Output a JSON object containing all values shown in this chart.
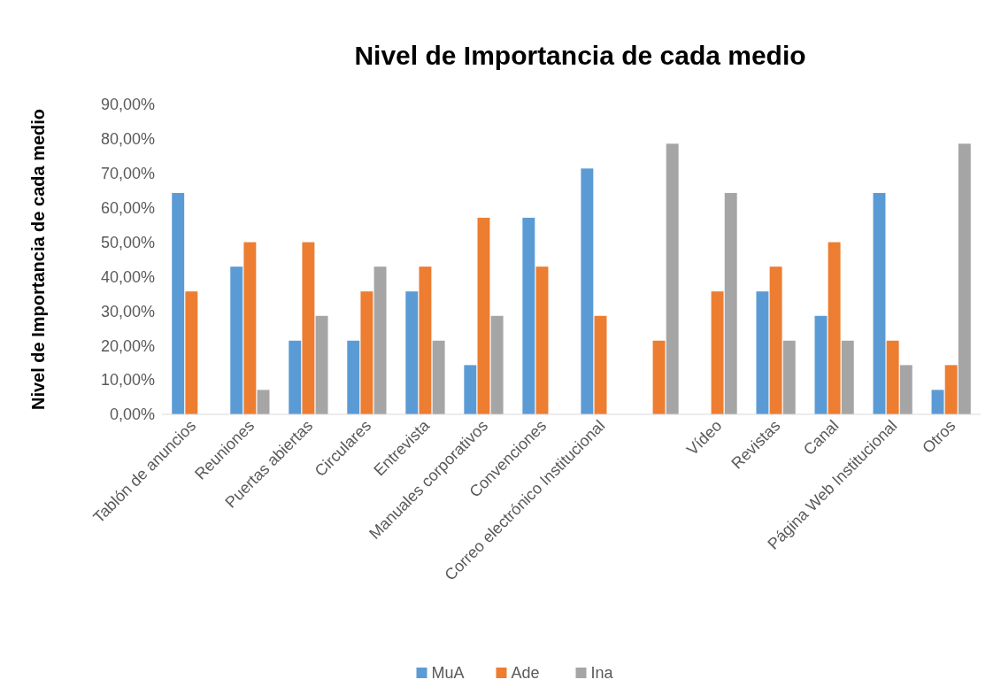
{
  "chart_data": {
    "type": "bar",
    "title": "Nivel de Importancia de cada medio",
    "ylabel": "Nivel de Importancia de cada medio",
    "categories": [
      "Tablón de anuncios",
      "Reuniones",
      "Puertas abiertas",
      "Circulares",
      "Entrevista",
      "Manuales corporativos",
      "Convenciones",
      "Correo electrónico Institucional",
      null,
      "Vídeo",
      "Revistas",
      "Canal",
      "Página Web Institucional",
      "Otros"
    ],
    "series": [
      {
        "name": "MuA",
        "color": "#5b9bd5",
        "values": [
          64.3,
          42.9,
          21.4,
          21.4,
          35.7,
          14.3,
          57.1,
          71.4,
          0,
          0,
          35.7,
          28.6,
          64.3,
          7.1
        ]
      },
      {
        "name": "Ade",
        "color": "#ed7d31",
        "values": [
          35.7,
          50,
          50,
          35.7,
          42.9,
          57.1,
          42.9,
          28.6,
          21.4,
          35.7,
          42.9,
          50,
          21.4,
          14.3
        ]
      },
      {
        "name": "Ina",
        "color": "#a5a5a5",
        "values": [
          0,
          7.1,
          28.6,
          42.9,
          21.4,
          28.6,
          0,
          0,
          78.6,
          64.3,
          21.4,
          21.4,
          14.3,
          78.6
        ]
      }
    ],
    "ylim": [
      0,
      90
    ],
    "yticks": [
      {
        "value": 0,
        "label": "0,00%"
      },
      {
        "value": 10,
        "label": "10,00%"
      },
      {
        "value": 20,
        "label": "20,00%"
      },
      {
        "value": 30,
        "label": "30,00%"
      },
      {
        "value": 40,
        "label": "40,00%"
      },
      {
        "value": 50,
        "label": "50,00%"
      },
      {
        "value": 60,
        "label": "60,00%"
      },
      {
        "value": 70,
        "label": "70,00%"
      },
      {
        "value": 80,
        "label": "80,00%"
      },
      {
        "value": 90,
        "label": "90,00%"
      }
    ],
    "grid": false,
    "legend": "bottom"
  }
}
